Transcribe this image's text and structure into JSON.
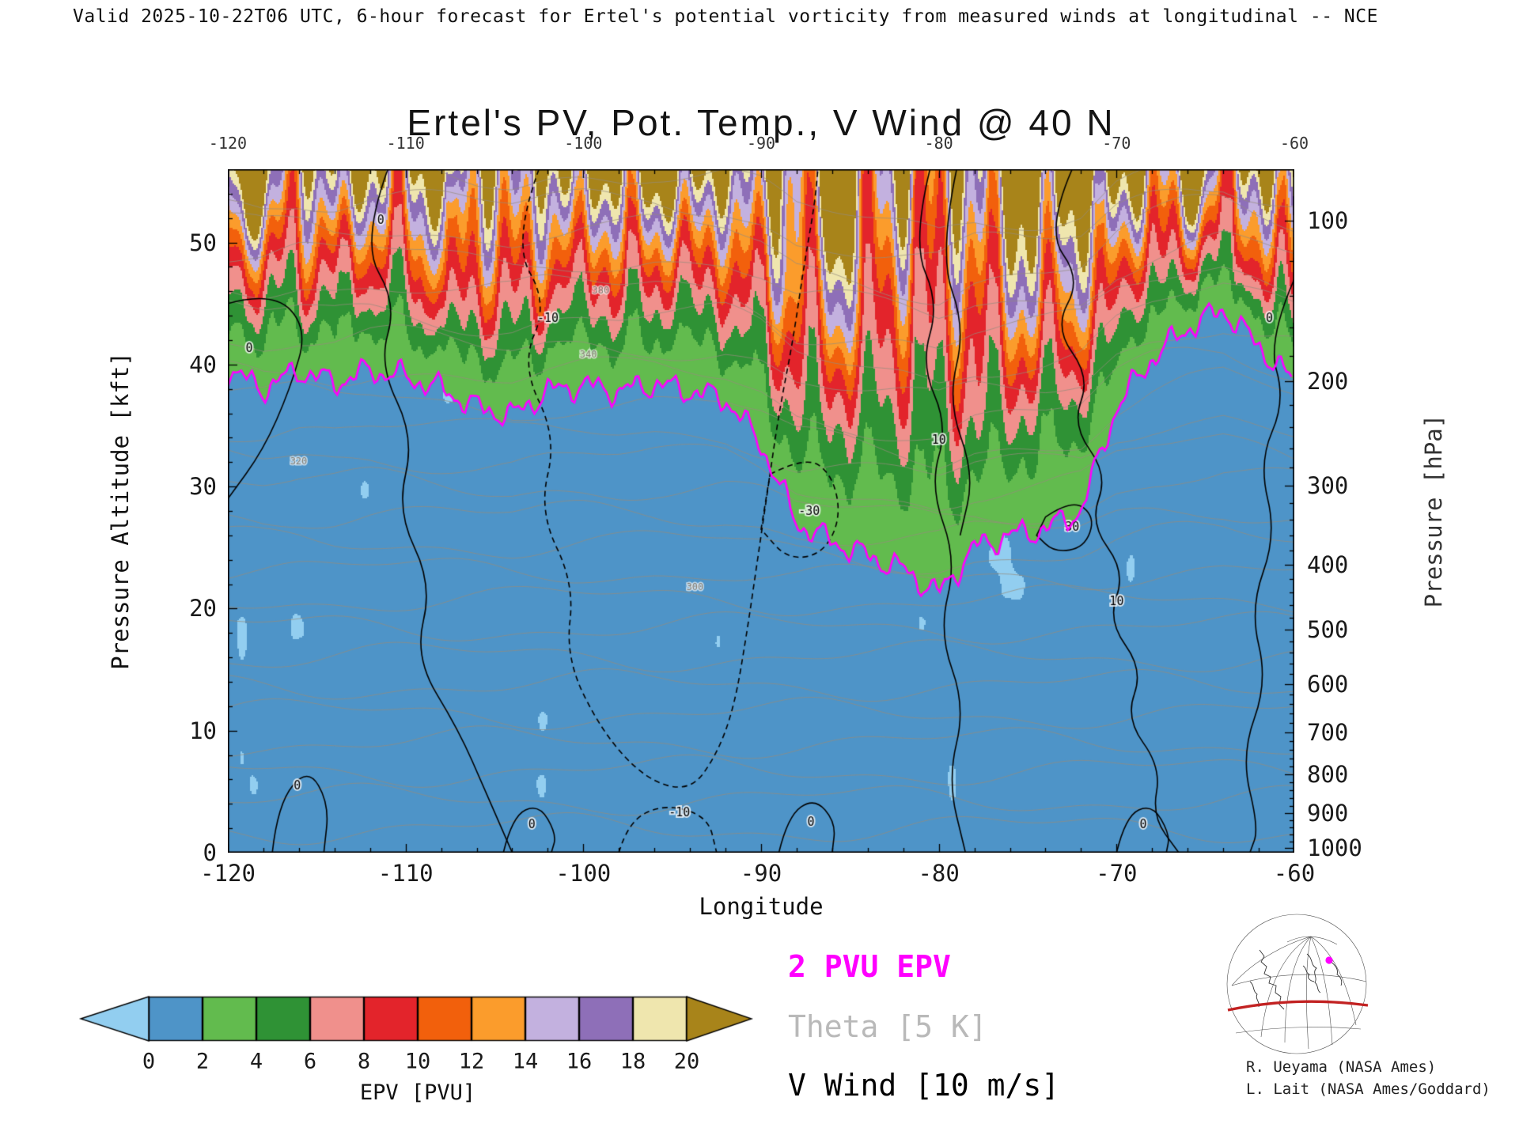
{
  "header": {
    "valid_text": "Valid 2025-10-22T06 UTC, 6-hour forecast for Ertel's potential vorticity from measured winds at longitudinal -- NCE"
  },
  "title": "Ertel's PV, Pot. Temp., V Wind @ 40 N",
  "axes": {
    "x": {
      "label": "Longitude",
      "min": -120,
      "max": -60,
      "major_ticks": [
        -120,
        -110,
        -100,
        -90,
        -80,
        -70,
        -60
      ]
    },
    "y_left": {
      "label": "Pressure Altitude [kft]",
      "min": 0,
      "max": 56,
      "major_ticks": [
        0,
        10,
        20,
        30,
        40,
        50
      ]
    },
    "y_right": {
      "label": "Pressure [hPa]",
      "ticks": [
        100,
        200,
        300,
        400,
        500,
        600,
        700,
        800,
        900,
        1000
      ]
    }
  },
  "colorbar": {
    "label": "EPV [PVU]",
    "ticks": [
      0,
      2,
      4,
      6,
      8,
      10,
      12,
      14,
      16,
      18,
      20
    ],
    "under": "#92CEF0",
    "over": "#A8841A",
    "colors": [
      "#4E94C8",
      "#62BB4E",
      "#2F9235",
      "#F0908C",
      "#E3242B",
      "#F2600C",
      "#FB9C2C",
      "#C3B1DF",
      "#8E6FB8",
      "#EFE6AE"
    ]
  },
  "legend": [
    {
      "text": "2 PVU EPV",
      "color": "#FF00FF"
    },
    {
      "text": "Theta [5 K]",
      "color": "#B9B9B9"
    },
    {
      "text": "V Wind [10 m/s]",
      "color": "#000000"
    }
  ],
  "credits": [
    "R. Ueyama (NASA Ames)",
    "L. Lait (NASA Ames/Goddard)"
  ],
  "map_inset": {
    "latitude_line_color": "#C22222",
    "location_dot_color": "#FF00FF"
  },
  "chart_data": {
    "type": "heatmap",
    "title": "Ertel's PV, Pot. Temp., V Wind @ 40 N",
    "xlabel": "Longitude",
    "x_range": [
      -120,
      -60
    ],
    "ylabel_left": "Pressure Altitude [kft]",
    "y_range": [
      0,
      56
    ],
    "ylabel_right": "Pressure [hPa]",
    "fill_field": "Ertel potential vorticity [PVU]",
    "fill_levels": [
      0,
      2,
      4,
      6,
      8,
      10,
      12,
      14,
      16,
      18,
      20
    ],
    "tropopause_2pvu": {
      "lon": [
        -120,
        -118,
        -116,
        -114,
        -112,
        -110,
        -108,
        -106,
        -104,
        -102,
        -100,
        -98,
        -96,
        -94,
        -92,
        -90,
        -88,
        -86,
        -84,
        -82,
        -80,
        -78,
        -76,
        -74,
        -72,
        -70,
        -68,
        -66,
        -64,
        -62,
        -60
      ],
      "kft": [
        39.5,
        38.0,
        39.5,
        38.5,
        39.5,
        39.0,
        38.0,
        36.5,
        35.8,
        37.8,
        38.3,
        37.8,
        38.4,
        37.8,
        37.2,
        33.5,
        27.0,
        25.5,
        24.3,
        23.2,
        21.2,
        25.0,
        26.0,
        26.5,
        28.0,
        36.5,
        40.5,
        43.0,
        44.5,
        41.5,
        38.5
      ]
    },
    "theta_contour_interval_K": 5,
    "theta_labels": [
      {
        "text": "340",
        "lon": -100.2,
        "kft": 40.6
      },
      {
        "text": "380",
        "lon": -99.5,
        "kft": 45.8
      },
      {
        "text": "320",
        "lon": -116.5,
        "kft": 31.8
      },
      {
        "text": "300",
        "lon": -94.2,
        "kft": 21.5
      }
    ],
    "vwind_contour_interval_ms": 10,
    "vwind_contours": [
      {
        "dashed": false,
        "closed": false,
        "label": "0",
        "label_at": [
          -111.6,
          51.5
        ],
        "pts": [
          [
            -111,
            56
          ],
          [
            -112.5,
            50
          ],
          [
            -110.5,
            45
          ],
          [
            -111.5,
            40
          ],
          [
            -109.5,
            34
          ],
          [
            -110.5,
            28
          ],
          [
            -108.5,
            22
          ],
          [
            -109.5,
            16
          ],
          [
            -107,
            10
          ],
          [
            -105.5,
            5
          ],
          [
            -104,
            0
          ]
        ]
      },
      {
        "dashed": false,
        "closed": false,
        "label": "0",
        "label_at": [
          -119,
          41
        ],
        "pts": [
          [
            -120,
            45
          ],
          [
            -117.5,
            46
          ],
          [
            -115.5,
            43
          ],
          [
            -116.5,
            38
          ],
          [
            -118,
            33
          ],
          [
            -120,
            29
          ]
        ]
      },
      {
        "dashed": false,
        "closed": false,
        "label": "0",
        "label_at": [
          -116.3,
          5.2
        ],
        "pts": [
          [
            -117.5,
            0
          ],
          [
            -117.2,
            4
          ],
          [
            -115.5,
            7
          ],
          [
            -114.3,
            4
          ],
          [
            -114.6,
            0
          ]
        ]
      },
      {
        "dashed": true,
        "closed": false,
        "label": "-10",
        "label_at": [
          -102.6,
          43.5
        ],
        "pts": [
          [
            -102.5,
            56
          ],
          [
            -104,
            50
          ],
          [
            -102,
            45
          ],
          [
            -103.5,
            40
          ],
          [
            -101.5,
            34
          ],
          [
            -102.5,
            28
          ],
          [
            -100.5,
            22
          ],
          [
            -101,
            16
          ],
          [
            -99,
            10
          ],
          [
            -96.5,
            6
          ],
          [
            -94,
            5
          ],
          [
            -92.5,
            8
          ],
          [
            -91.5,
            12
          ],
          [
            -90.8,
            18
          ],
          [
            -90.2,
            24
          ],
          [
            -89.6,
            30
          ],
          [
            -89,
            36
          ],
          [
            -88.2,
            42
          ],
          [
            -87.6,
            48
          ],
          [
            -87,
            53
          ],
          [
            -86.8,
            56
          ]
        ]
      },
      {
        "dashed": true,
        "closed": true,
        "label": "-30",
        "label_at": [
          -87.9,
          27.7
        ],
        "pts": [
          [
            -89.5,
            31
          ],
          [
            -87.5,
            32.5
          ],
          [
            -86,
            31
          ],
          [
            -85.5,
            27.5
          ],
          [
            -86.5,
            24.5
          ],
          [
            -88.5,
            24
          ],
          [
            -90,
            26.5
          ]
        ]
      },
      {
        "dashed": true,
        "closed": false,
        "label": "-10",
        "label_at": [
          -95.2,
          3.0
        ],
        "pts": [
          [
            -98,
            0
          ],
          [
            -97.5,
            2.5
          ],
          [
            -95.5,
            4
          ],
          [
            -93,
            3
          ],
          [
            -92.5,
            0
          ]
        ]
      },
      {
        "dashed": false,
        "closed": false,
        "label": "10",
        "label_at": [
          -80.4,
          33.5
        ],
        "pts": [
          [
            -80.5,
            56
          ],
          [
            -81.5,
            50
          ],
          [
            -80,
            45
          ],
          [
            -81,
            40
          ],
          [
            -79.5,
            35
          ],
          [
            -80.5,
            30
          ],
          [
            -79,
            24
          ],
          [
            -80,
            18
          ],
          [
            -78.5,
            12
          ],
          [
            -79.5,
            6
          ],
          [
            -78.5,
            0
          ]
        ]
      },
      {
        "dashed": false,
        "closed": false,
        "label": null,
        "label_at": null,
        "pts": [
          [
            -79,
            56
          ],
          [
            -80,
            49
          ],
          [
            -78.5,
            43
          ],
          [
            -79.5,
            37
          ],
          [
            -78,
            31
          ],
          [
            -78.8,
            26
          ]
        ]
      },
      {
        "dashed": false,
        "closed": false,
        "label": "10",
        "label_at": [
          -70.4,
          20.3
        ],
        "pts": [
          [
            -72.5,
            56
          ],
          [
            -74,
            51
          ],
          [
            -72,
            47
          ],
          [
            -73.5,
            43
          ],
          [
            -71.5,
            39
          ],
          [
            -72.5,
            35
          ],
          [
            -70.5,
            31
          ],
          [
            -71.5,
            27
          ],
          [
            -69.5,
            23
          ],
          [
            -70.5,
            19
          ],
          [
            -68.5,
            15
          ],
          [
            -69.5,
            11
          ],
          [
            -67.5,
            7
          ],
          [
            -68,
            3
          ],
          [
            -66.5,
            0
          ]
        ]
      },
      {
        "dashed": false,
        "closed": true,
        "label": "30",
        "label_at": [
          -72.9,
          26.4
        ],
        "pts": [
          [
            -74,
            27.5
          ],
          [
            -72.5,
            29
          ],
          [
            -71.2,
            27.5
          ],
          [
            -71.8,
            25
          ],
          [
            -73.5,
            24.6
          ],
          [
            -74.5,
            26
          ]
        ]
      },
      {
        "dashed": false,
        "closed": false,
        "label": "0",
        "label_at": [
          -61.6,
          43.5
        ],
        "pts": [
          [
            -60,
            47
          ],
          [
            -61.5,
            42
          ],
          [
            -60.5,
            37
          ],
          [
            -62,
            32
          ],
          [
            -61,
            26
          ],
          [
            -62.5,
            20
          ],
          [
            -61.5,
            14
          ],
          [
            -63,
            8
          ],
          [
            -62,
            2
          ],
          [
            -62.5,
            0
          ]
        ]
      },
      {
        "dashed": false,
        "closed": false,
        "label": "0",
        "label_at": [
          -87.4,
          2.2
        ],
        "pts": [
          [
            -89,
            0
          ],
          [
            -88.5,
            3
          ],
          [
            -87,
            4.5
          ],
          [
            -85.8,
            2.5
          ],
          [
            -86,
            0
          ]
        ]
      },
      {
        "dashed": false,
        "closed": false,
        "label": "0",
        "label_at": [
          -68.7,
          2.0
        ],
        "pts": [
          [
            -70,
            0
          ],
          [
            -69.5,
            3
          ],
          [
            -68,
            4
          ],
          [
            -67,
            1.5
          ],
          [
            -67.2,
            0
          ]
        ]
      },
      {
        "dashed": false,
        "closed": false,
        "label": "0",
        "label_at": [
          -103.1,
          2.0
        ],
        "pts": [
          [
            -104.5,
            0
          ],
          [
            -104,
            3
          ],
          [
            -102.5,
            4
          ],
          [
            -101.5,
            1.5
          ],
          [
            -101.8,
            0
          ]
        ]
      }
    ]
  }
}
